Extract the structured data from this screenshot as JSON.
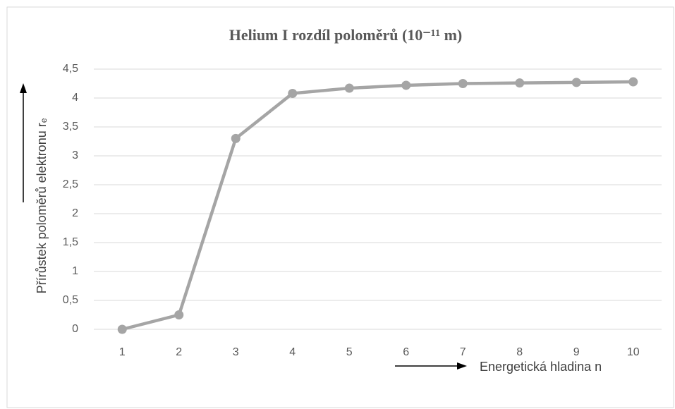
{
  "chart_data": {
    "type": "line",
    "title": "Helium I rozdíl poloměrů (10⁻¹¹ m)",
    "x_label": "Energetická hladina n",
    "y_label": "Přírůstek poloměrů elektronu rₑ",
    "categories": [
      "1",
      "2",
      "3",
      "4",
      "5",
      "6",
      "7",
      "8",
      "9",
      "10"
    ],
    "series": [
      {
        "name": "Helium I",
        "color": "#a5a5a5",
        "values": [
          0,
          0.25,
          3.3,
          4.08,
          4.17,
          4.22,
          4.25,
          4.26,
          4.27,
          4.28
        ]
      }
    ],
    "ylim": [
      0,
      4.5
    ],
    "yticks": [
      0,
      {
        "value": 0.5,
        "label": "0,5"
      },
      1,
      {
        "value": 1.5,
        "label": "1,5"
      },
      2,
      {
        "value": 2.5,
        "label": "2,5"
      },
      3,
      {
        "value": 3.5,
        "label": "3,5"
      },
      4,
      {
        "value": 4.5,
        "label": "4,5"
      }
    ],
    "grid": true,
    "legend": false
  }
}
